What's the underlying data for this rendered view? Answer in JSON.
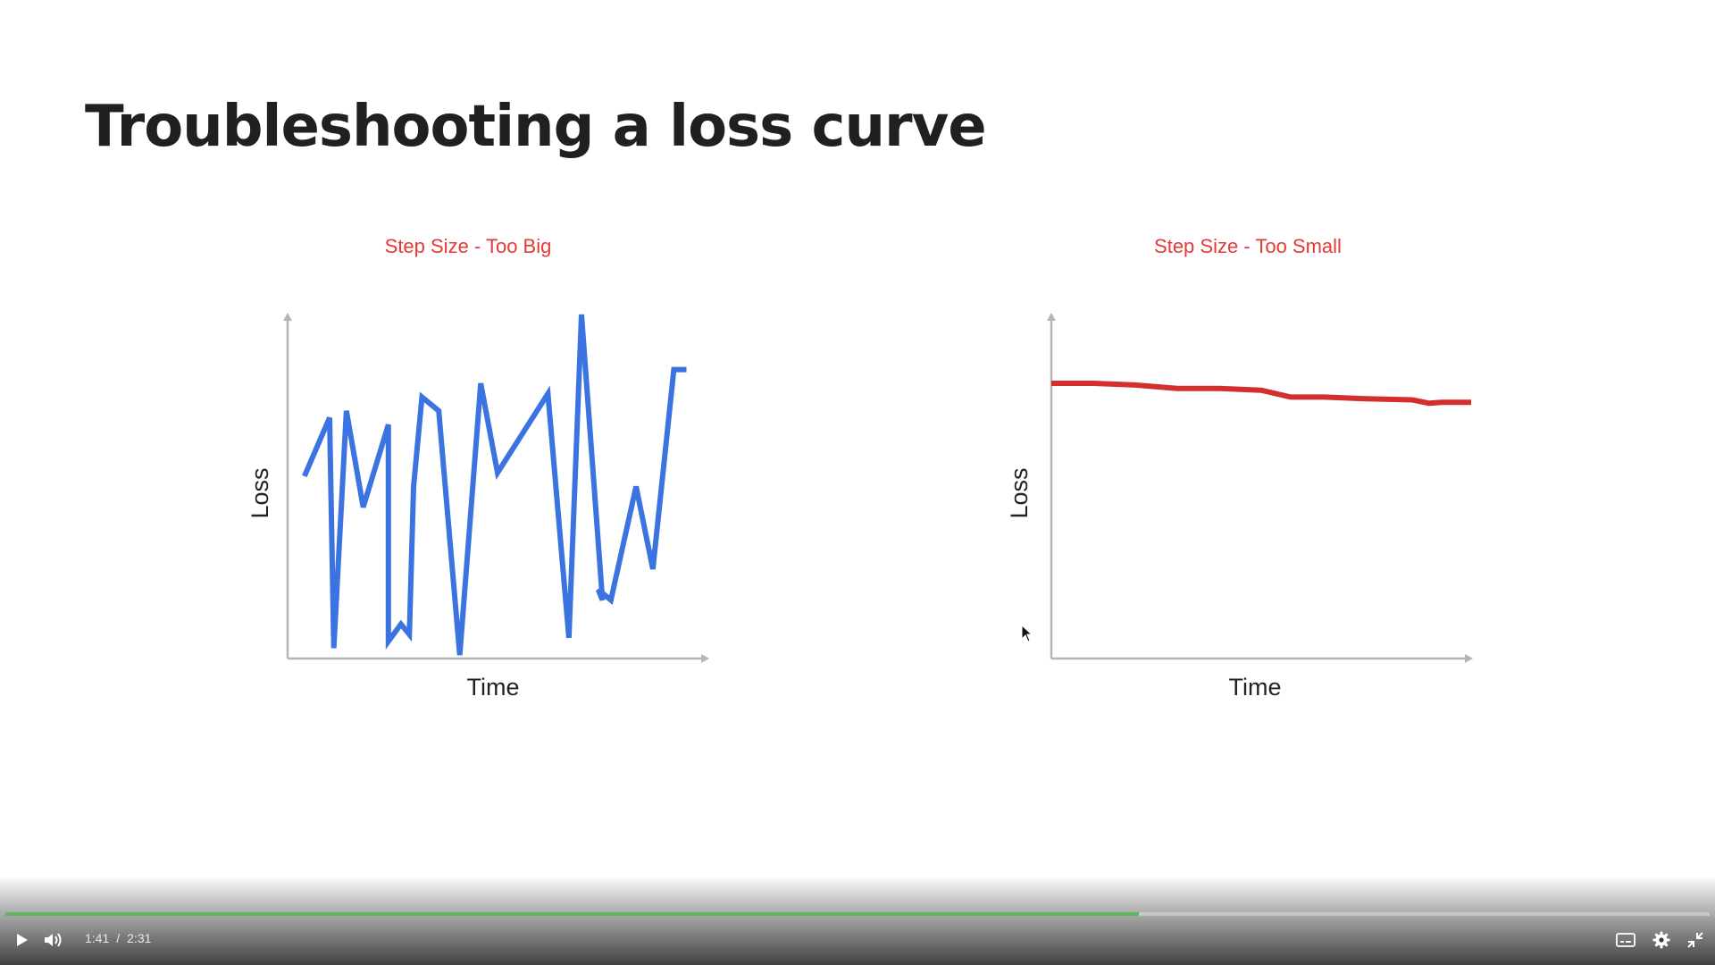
{
  "slide": {
    "title": "Troubleshooting a loss curve"
  },
  "chart_data": [
    {
      "type": "line",
      "title": "Step Size - Too Big",
      "xlabel": "Time",
      "ylabel": "Loss",
      "xlim": [
        0,
        1
      ],
      "ylim": [
        0,
        1
      ],
      "grid": false,
      "axis_ticks": false,
      "series": [
        {
          "color": "#3b73e0",
          "x": [
            0.04,
            0.1,
            0.11,
            0.14,
            0.18,
            0.24,
            0.24,
            0.27,
            0.29,
            0.3,
            0.32,
            0.36,
            0.41,
            0.46,
            0.5,
            0.62,
            0.67,
            0.7,
            0.75,
            0.74,
            0.77,
            0.83,
            0.87,
            0.92,
            0.93,
            0.94,
            0.95
          ],
          "y": [
            0.53,
            0.7,
            0.03,
            0.72,
            0.44,
            0.68,
            0.05,
            0.1,
            0.07,
            0.5,
            0.76,
            0.72,
            0.01,
            0.8,
            0.54,
            0.77,
            0.06,
            1.0,
            0.17,
            0.2,
            0.17,
            0.5,
            0.26,
            0.84,
            0.84,
            0.84,
            0.84
          ]
        }
      ]
    },
    {
      "type": "line",
      "title": "Step Size - Too Small",
      "xlabel": "Time",
      "ylabel": "Loss",
      "xlim": [
        0,
        1
      ],
      "ylim": [
        0,
        1
      ],
      "grid": false,
      "axis_ticks": false,
      "series": [
        {
          "color": "#d32f2f",
          "x": [
            0.0,
            0.1,
            0.2,
            0.3,
            0.4,
            0.5,
            0.57,
            0.65,
            0.75,
            0.86,
            0.9,
            0.93,
            1.0
          ],
          "y": [
            0.8,
            0.8,
            0.795,
            0.785,
            0.785,
            0.78,
            0.76,
            0.76,
            0.755,
            0.752,
            0.742,
            0.745,
            0.745
          ]
        }
      ]
    }
  ],
  "player": {
    "current_time": "1:41",
    "separator": "/",
    "duration": "2:31",
    "progress": 0.665,
    "accent_color": "#5cb85c",
    "icons": {
      "play": "play-icon",
      "volume": "volume-icon",
      "captions": "captions-icon",
      "settings": "gear-icon",
      "exit_fullscreen": "exit-fullscreen-icon"
    }
  }
}
